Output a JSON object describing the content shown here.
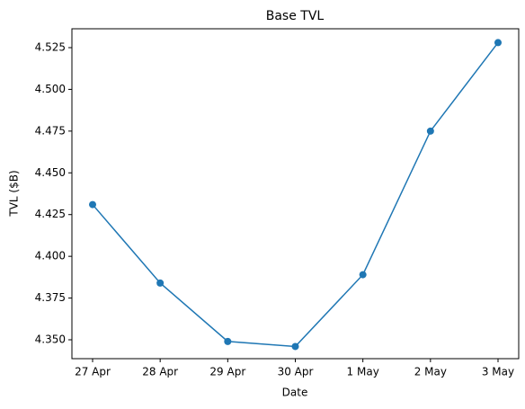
{
  "chart_data": {
    "type": "line",
    "title": "Base TVL",
    "x_label": "Date",
    "y_label": "TVL ($B)",
    "categories": [
      "27 Apr",
      "28 Apr",
      "29 Apr",
      "30 Apr",
      "1 May",
      "2 May",
      "3 May"
    ],
    "series": [
      {
        "name": "Base TVL",
        "color": "#1f77b4",
        "values": [
          4.431,
          4.384,
          4.349,
          4.346,
          4.389,
          4.475,
          4.528
        ]
      }
    ],
    "ylim": [
      4.3387,
      4.5363
    ],
    "yticks": [
      {
        "value": 4.35,
        "label": "4.350"
      },
      {
        "value": 4.375,
        "label": "4.375"
      },
      {
        "value": 4.4,
        "label": "4.400"
      },
      {
        "value": 4.425,
        "label": "4.425"
      },
      {
        "value": 4.45,
        "label": "4.450"
      },
      {
        "value": 4.475,
        "label": "4.475"
      },
      {
        "value": 4.5,
        "label": "4.500"
      },
      {
        "value": 4.525,
        "label": "4.525"
      }
    ],
    "grid": false,
    "markers": true
  }
}
